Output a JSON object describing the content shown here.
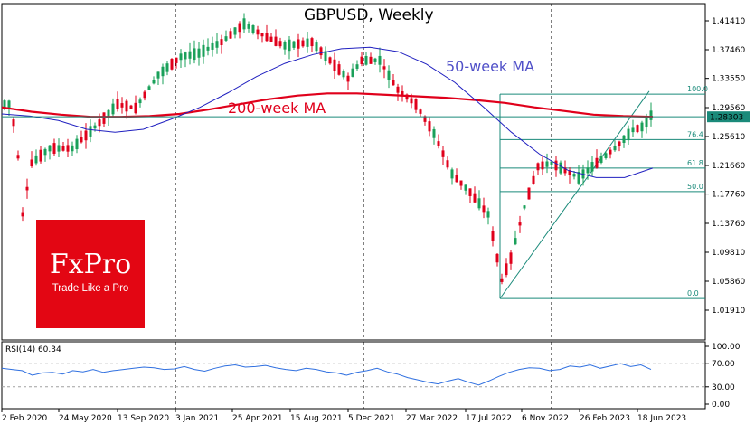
{
  "chart_data": {
    "type": "candlestick",
    "symbol_title": "GBPUSD, Weekly",
    "price_axis_ticks": [
      "1.41410",
      "1.37460",
      "1.33550",
      "1.29560",
      "1.25610",
      "1.21660",
      "1.17760",
      "1.13760",
      "1.09810",
      "1.05860",
      "1.01910"
    ],
    "current_price_label": "1.28303",
    "current_price": 1.28303,
    "time_labels": [
      "2 Feb 2020",
      "24 May 2020",
      "13 Sep 2020",
      "3 Jan 2021",
      "25 Apr 2021",
      "15 Aug 2021",
      "5 Dec 2021",
      "27 Mar 2022",
      "17 Jul 2022",
      "6 Nov 2022",
      "26 Feb 2023",
      "18 Jun 2023"
    ],
    "series": [
      {
        "name": "200-week MA",
        "color": "#e0001b",
        "values": [
          1.296,
          1.29,
          1.286,
          1.283,
          1.283,
          1.284,
          1.287,
          1.293,
          1.3,
          1.307,
          1.312,
          1.315,
          1.315,
          1.313,
          1.311,
          1.309,
          1.306,
          1.302,
          1.296,
          1.291,
          1.286,
          1.284,
          1.283
        ]
      },
      {
        "name": "50-week MA",
        "color": "#2020c0",
        "values": [
          1.287,
          1.284,
          1.278,
          1.266,
          1.262,
          1.266,
          1.28,
          1.296,
          1.316,
          1.338,
          1.356,
          1.368,
          1.376,
          1.378,
          1.372,
          1.355,
          1.33,
          1.297,
          1.262,
          1.232,
          1.21,
          1.2,
          1.2,
          1.213
        ]
      }
    ],
    "fibonacci_levels": [
      {
        "label": "100.0",
        "price": 1.314
      },
      {
        "label": "76.4",
        "price": 1.252
      },
      {
        "label": "61.8",
        "price": 1.213
      },
      {
        "label": "50.0",
        "price": 1.181
      },
      {
        "label": "0.0",
        "price": 1.035
      }
    ],
    "rsi": {
      "label": "RSI(14) 60.34",
      "period": 14,
      "value": 60.34,
      "ticks": [
        "100.00",
        "70.00",
        "30.00",
        "0.00"
      ],
      "levels": [
        70,
        30
      ],
      "values": [
        62,
        60,
        58,
        50,
        54,
        55,
        52,
        58,
        56,
        60,
        55,
        58,
        60,
        62,
        64,
        63,
        60,
        61,
        65,
        60,
        57,
        62,
        66,
        68,
        64,
        65,
        67,
        63,
        60,
        58,
        62,
        60,
        56,
        54,
        50,
        55,
        58,
        62,
        56,
        52,
        46,
        42,
        38,
        35,
        40,
        44,
        38,
        33,
        40,
        48,
        55,
        60,
        63,
        62,
        58,
        60,
        66,
        64,
        68,
        62,
        66,
        70,
        65,
        68,
        60
      ]
    }
  }
}
